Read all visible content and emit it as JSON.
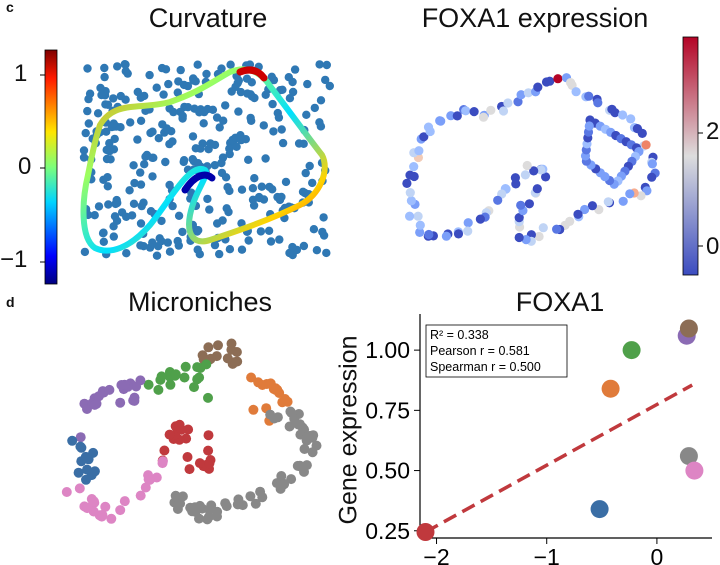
{
  "panel_labels": {
    "c": "c",
    "d": "d"
  },
  "panels": {
    "curvature": {
      "title": "Curvature",
      "colorbar_ticks": [
        "1",
        "0",
        "−1"
      ],
      "colormap": "jet"
    },
    "foxa1_expression": {
      "title": "FOXA1 expression",
      "colorbar_ticks": [
        "2",
        "0"
      ],
      "colormap": "coolwarm"
    },
    "microniches": {
      "title": "Microniches",
      "niche_colors": [
        "#8c6d55",
        "#4fa04a",
        "#e07b3a",
        "#8b6bb4",
        "#3a6ea5",
        "#c0393d",
        "#dd85c4",
        "#888888"
      ]
    }
  },
  "chart_data": {
    "type": "scatter",
    "title": "FOXA1",
    "xlabel": "",
    "ylabel": "Gene expression",
    "xlim": [
      -2.15,
      0.5
    ],
    "ylim": [
      0.22,
      1.15
    ],
    "x_ticks": [
      "−2",
      "−1",
      "0"
    ],
    "x_tick_values": [
      -2,
      -1,
      0
    ],
    "y_ticks": [
      "0.25",
      "0.50",
      "0.75",
      "1.00"
    ],
    "y_tick_values": [
      0.25,
      0.5,
      0.75,
      1.0
    ],
    "points": [
      {
        "x": -2.1,
        "y": 0.245,
        "color": "#c0393d"
      },
      {
        "x": -0.52,
        "y": 0.34,
        "color": "#3a6ea5"
      },
      {
        "x": -0.42,
        "y": 0.84,
        "color": "#e07b3a"
      },
      {
        "x": -0.23,
        "y": 1.0,
        "color": "#4fa04a"
      },
      {
        "x": 0.27,
        "y": 1.06,
        "color": "#8b6bb4"
      },
      {
        "x": 0.29,
        "y": 1.09,
        "color": "#8c6d55"
      },
      {
        "x": 0.29,
        "y": 0.56,
        "color": "#888888"
      },
      {
        "x": 0.34,
        "y": 0.5,
        "color": "#dd85c4"
      }
    ],
    "fit_line": {
      "x": [
        -2.1,
        0.32
      ],
      "y": [
        0.245,
        0.855
      ],
      "color": "#c0393d",
      "style": "dashed"
    },
    "stats_box": {
      "r2": "R² = 0.338",
      "pearson": "Pearson r = 0.581",
      "spearman": "Spearman r = 0.500"
    },
    "grid": false
  }
}
